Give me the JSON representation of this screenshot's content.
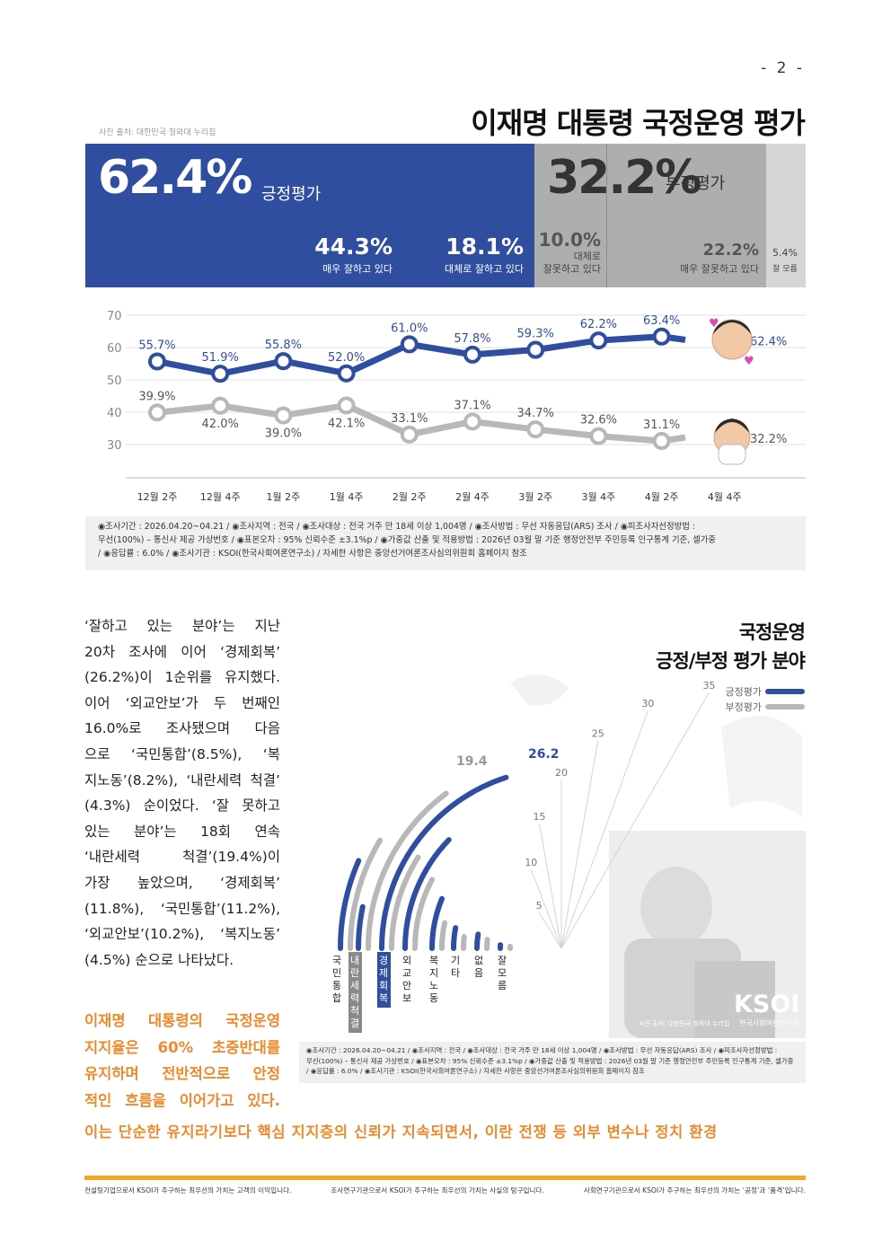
{
  "page_number": "- 2 -",
  "photo_credit": "사진 출처: 대한민국 청와대 누리집",
  "title": "이재명 대통령 국정운영 평가",
  "eval": {
    "positive": {
      "value": "62.4%",
      "label": "긍정평가"
    },
    "negative": {
      "value": "32.2%",
      "label": "부정평가"
    },
    "very_good": {
      "value": "44.3%",
      "label": "매우 잘하고 있다"
    },
    "somewhat_good": {
      "value": "18.1%",
      "label": "대체로 잘하고 있다"
    },
    "somewhat_bad": {
      "value": "10.0%",
      "label1": "대체로",
      "label2": "잘못하고 있다"
    },
    "very_bad": {
      "value": "22.2%",
      "label": "매우 잘못하고 있다"
    },
    "unknown": {
      "value": "5.4%",
      "label": "잘 모름"
    },
    "colors": {
      "positive": "#2f4ea0",
      "negative": "#aeaeae",
      "unknown": "#d6d6d6"
    }
  },
  "chart_data": [
    {
      "type": "line",
      "categories": [
        "12월 2주",
        "12월 4주",
        "1월 2주",
        "1월 4주",
        "2월 2주",
        "2월 4주",
        "3월 2주",
        "3월 4주",
        "4월 2주",
        "4월 4주"
      ],
      "ylim": [
        30,
        70
      ],
      "yticks": [
        30,
        40,
        50,
        60,
        70
      ],
      "grid": true,
      "series": [
        {
          "values": [
            55.7,
            51.9,
            55.8,
            52.0,
            61.0,
            57.8,
            59.3,
            62.2,
            63.4,
            62.4
          ],
          "labels": [
            "55.7%",
            "51.9%",
            "55.8%",
            "52.0%",
            "61.0%",
            "57.8%",
            "59.3%",
            "62.2%",
            "63.4%",
            "62.4%"
          ],
          "color": "#2f4ea0"
        },
        {
          "values": [
            39.9,
            42.0,
            39.0,
            42.1,
            33.1,
            37.1,
            34.7,
            32.6,
            31.1,
            32.2
          ],
          "labels": [
            "39.9%",
            "42.0%",
            "39.0%",
            "42.1%",
            "33.1%",
            "37.1%",
            "34.7%",
            "32.6%",
            "31.1%",
            "32.2%"
          ],
          "color": "#b8b8b8"
        }
      ]
    },
    {
      "type": "bar",
      "title": "국정운영 긍정/부정 평가 분야",
      "categories": [
        "국민통합",
        "내란세력척결",
        "경제회복",
        "외교안보",
        "복지노동",
        "기타",
        "없음",
        "잘모름"
      ],
      "ticks": [
        5,
        10,
        15,
        20,
        25,
        30,
        35
      ],
      "series": [
        {
          "name": "긍정평가",
          "color": "#2f4ea0",
          "values": [
            8.5,
            4.3,
            26.2,
            16.0,
            8.2,
            4.0,
            3.5,
            1.2
          ]
        },
        {
          "name": "부정평가",
          "color": "#b8b8b8",
          "values": [
            11.2,
            19.4,
            11.8,
            10.2,
            4.5,
            2.5,
            2.5,
            0.8
          ]
        }
      ],
      "labels": {
        "positive_max": "26.2",
        "negative_max": "19.4"
      },
      "highlight": {
        "경제회복": "#2f4ea0",
        "내란세력척결": "#8a8a8a"
      }
    }
  ],
  "line_chart_xlabels": [
    "12월 2주",
    "12월 4주",
    "1월 2주",
    "1월 4주",
    "2월 2주",
    "2월 4주",
    "3월 2주",
    "3월 4주",
    "4월 2주",
    "4월 4주"
  ],
  "note1": {
    "l1": "◉조사기간 : 2026.04.20~04.21 / ◉조사지역 : 전국 / ◉조사대상 : 전국 거주 만 18세 이상 1,004명 / ◉조사방법 : 무선 자동응답(ARS) 조사 / ◉피조사자선정방법 :",
    "l2": "무선(100%) – 통신사 제공 가상번호 / ◉표본오차 : 95% 신뢰수준 ±3.1%p / ◉가중값 산출 및 적용방법 : 2026년 03월 말 기준 행정안전부 주민등록 인구통계 기준, 셀가중",
    "l3": "/ ◉응답률 : 6.0% / ◉조사기관 : KSOI(한국사회여론연구소) / 자세한 사항은 중앙선거여론조사심의위원회 홈페이지 참조"
  },
  "body": {
    "lines": [
      "‘잘하고 있는 분야’는 지난",
      "20차 조사에 이어 ‘경제회복’",
      "(26.2%)이 1순위를 유지했다.",
      "이어 ‘외교안보’가 두 번째인",
      "16.0%로 조사됐으며 다음",
      "으로 ‘국민통합’(8.5%), ‘복",
      "지노동’(8.2%), ‘내란세력 척결’",
      "(4.3%) 순이었다. ‘잘 못하고",
      "있는 분야’는 18회 연속",
      "‘내란세력 척결’(19.4%)이",
      "가장 높았으며, ‘경제회복’",
      "(11.8%), ‘국민통합’(11.2%),",
      "‘외교안보’(10.2%), ‘복지노동’",
      "(4.5%) 순으로 나타났다."
    ],
    "orange": [
      "이재명 대통령의 국정운영",
      "지지율은 60% 초중반대를",
      "유지하며 전반적으로 안정",
      "적인 흐름을 이어가고 있다."
    ],
    "orange_full": "이는 단순한 유지라기보다 핵심 지지층의 신뢰가 지속되면서, 이란 전쟁 등 외부 변수나 정치 환경"
  },
  "section2": {
    "title1": "국정운영",
    "title2": "긍정/부정 평가 분야",
    "legend_pos": "긍정평가",
    "legend_neg": "부정평가",
    "watermark": "KSOI",
    "watermark_sub": "한국사회여론연구소",
    "photo_credit2": "사진 출처: 대한민국 청와대 누리집"
  },
  "note2": {
    "l1": "◉조사기간 : 2026.04.20~04.21 / ◉조사지역 : 전국 / ◉조사대상 : 전국 거주 만 18세 이상 1,004명 / ◉조사방법 : 무선 자동응답(ARS) 조사 / ◉피조사자선정방법 :",
    "l2": "무선(100%) – 통신사 제공 가상번호 / ◉표본오차 : 95% 신뢰수준 ±3.1%p / ◉가중값 산출 및 적용방법 : 2026년 03월 말 기준 행정안전부 주민등록 인구통계 기준, 셀가중",
    "l3": "/ ◉응답률 : 6.0% / ◉조사기관 : KSOI(한국사회여론연구소) / 자세한 사항은 중앙선거여론조사심의위원회 홈페이지 참조"
  },
  "footer": {
    "f1": "컨설팅기업으로서 KSOI가 추구하는 최우선의 가치는 고객의 이익입니다.",
    "f2": "조사연구기관으로서 KSOI가 추구하는 최우선의 가치는 사실의 탐구입니다.",
    "f3": "사회연구기관으로서 KSOI가 추구하는 최우선의 가치는 ‘공정’과 ‘품격’입니다."
  }
}
